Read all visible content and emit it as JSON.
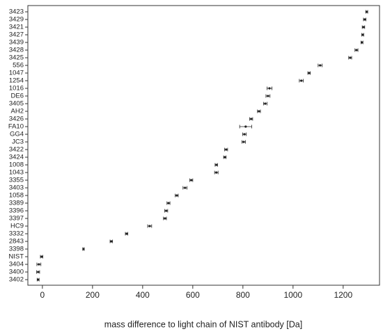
{
  "chart_data": {
    "type": "errorbar",
    "x_label": "mass difference to light chain of NIST antibody [Da]",
    "categories": [
      "3423",
      "3429",
      "3421",
      "3427",
      "3439",
      "3428",
      "3425",
      "556",
      "1047",
      "1254",
      "1016",
      "DE6",
      "3405",
      "AH2",
      "3426",
      "FA10",
      "GG4",
      "JC3",
      "3422",
      "3424",
      "1008",
      "1043",
      "3355",
      "3403",
      "1058",
      "3389",
      "3396",
      "3397",
      "HC9",
      "3332",
      "2843",
      "3398",
      "NIST",
      "3404",
      "3400",
      "3402"
    ],
    "values": [
      1294,
      1286,
      1281,
      1278,
      1275,
      1253,
      1228,
      1108,
      1064,
      1033,
      906,
      900,
      889,
      864,
      833,
      811,
      806,
      803,
      733,
      728,
      694,
      694,
      594,
      569,
      536,
      503,
      494,
      489,
      428,
      336,
      275,
      164,
      -3,
      -14,
      -17,
      -17
    ],
    "errors": [
      4,
      5,
      5,
      4,
      4,
      6,
      6,
      8,
      5,
      8,
      10,
      8,
      7,
      6,
      6,
      24,
      7,
      7,
      6,
      5,
      5,
      7,
      6,
      8,
      6,
      6,
      6,
      6,
      8,
      5,
      5,
      3,
      5,
      8,
      6,
      4
    ],
    "color": "#222222",
    "xlim": [
      -58,
      1345
    ],
    "xticks": [
      0,
      200,
      400,
      600,
      800,
      1000,
      1200
    ]
  }
}
